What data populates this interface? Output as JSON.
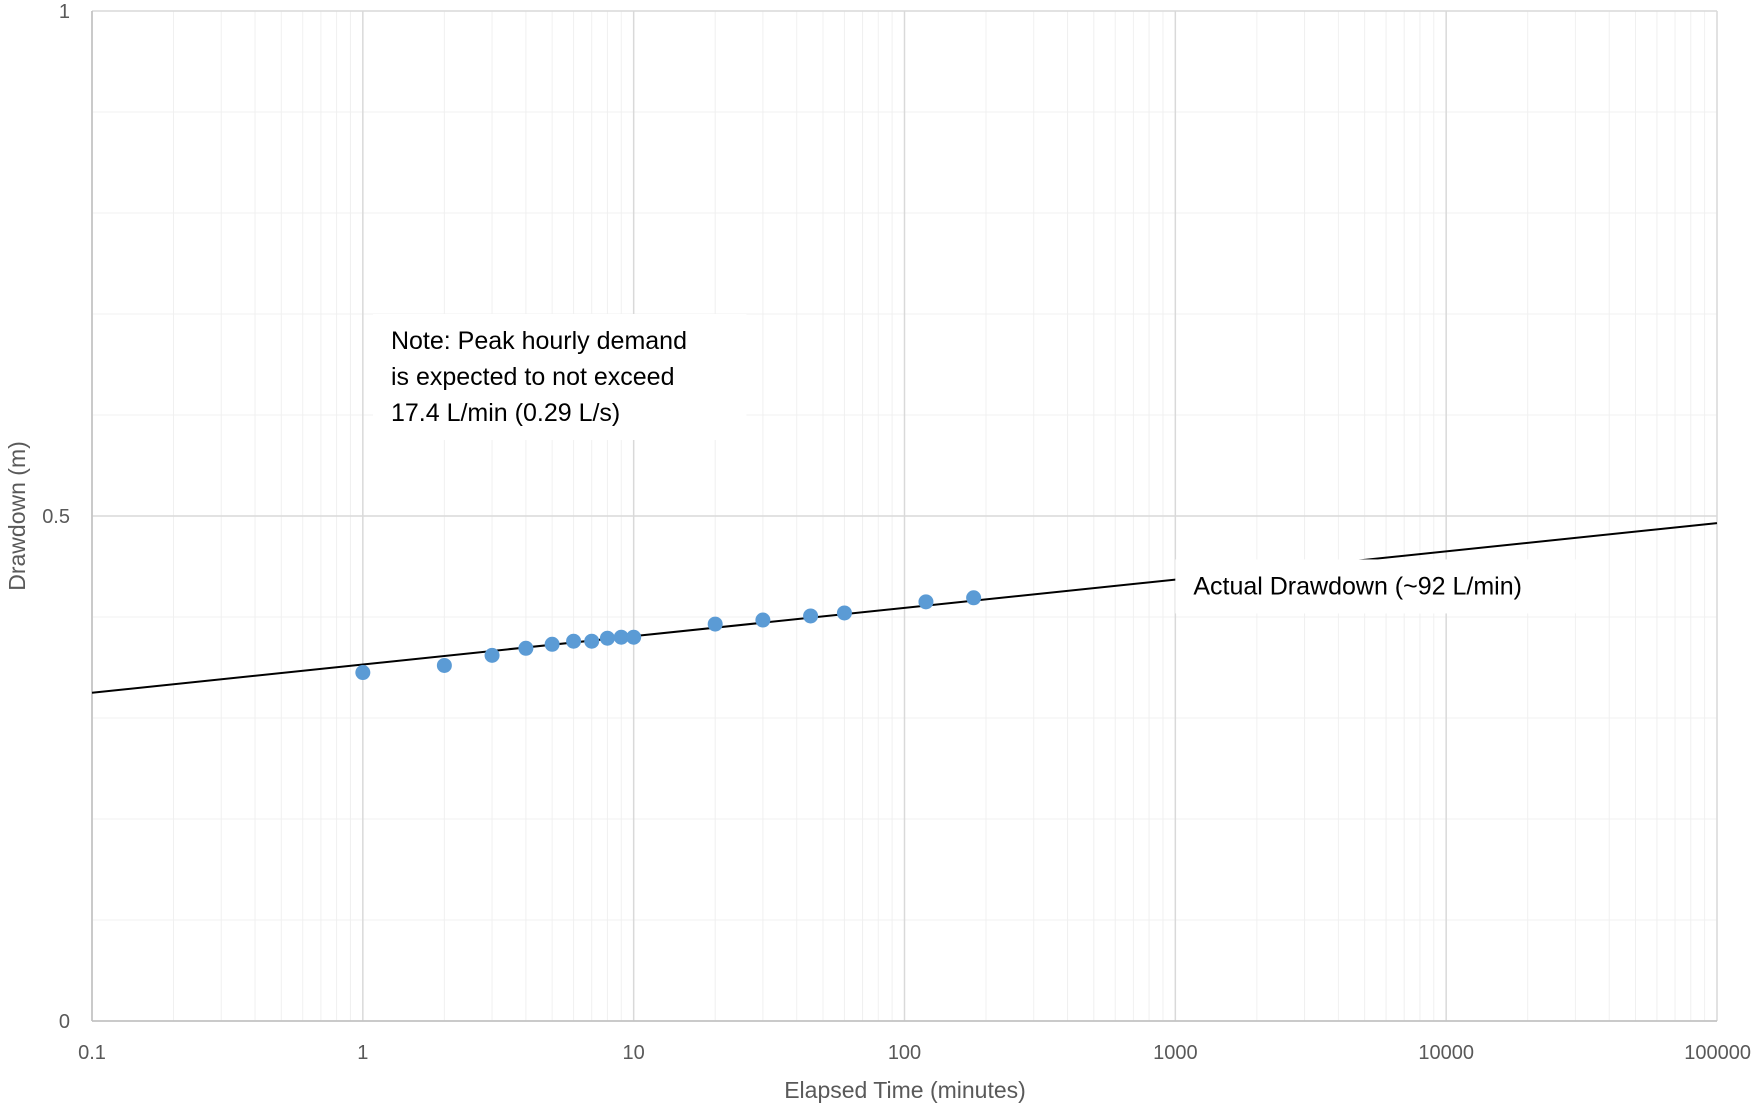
{
  "chart_data": {
    "type": "scatter",
    "title": "",
    "xlabel": "Elapsed Time (minutes)",
    "ylabel": "Drawdown (m)",
    "xscale": "log",
    "xlim": [
      0.1,
      100000
    ],
    "ylim": [
      0,
      1
    ],
    "grid": true,
    "x_tick_labels": [
      "0.1",
      "1",
      "10",
      "100",
      "1000",
      "10000",
      "100000"
    ],
    "y_tick_labels": [
      "0",
      "0.5",
      "1"
    ],
    "series": [
      {
        "type": "scatter",
        "color": "#5b9bd5",
        "x": [
          1,
          2,
          3,
          4,
          5,
          6,
          7,
          8,
          9,
          10,
          20,
          30,
          45,
          60,
          120,
          180
        ],
        "y": [
          0.345,
          0.352,
          0.362,
          0.369,
          0.373,
          0.376,
          0.376,
          0.379,
          0.38,
          0.38,
          0.393,
          0.397,
          0.401,
          0.404,
          0.415,
          0.419
        ]
      },
      {
        "type": "trendline",
        "name": "Actual Drawdown (~92 L/min)",
        "color": "#000000",
        "x": [
          0.1,
          100000
        ],
        "y": [
          0.325,
          0.493
        ]
      }
    ],
    "annotations": [
      {
        "lines": [
          "Note: Peak hourly demand",
          "is expected to not exceed",
          "17.4 L/min (0.29 L/s)"
        ],
        "anchor_x": 1.09,
        "anchor_y": 0.7
      },
      {
        "lines": [
          "Actual Drawdown (~92 L/min)"
        ],
        "anchor_x": 1000,
        "anchor_y": 0.457
      }
    ]
  }
}
